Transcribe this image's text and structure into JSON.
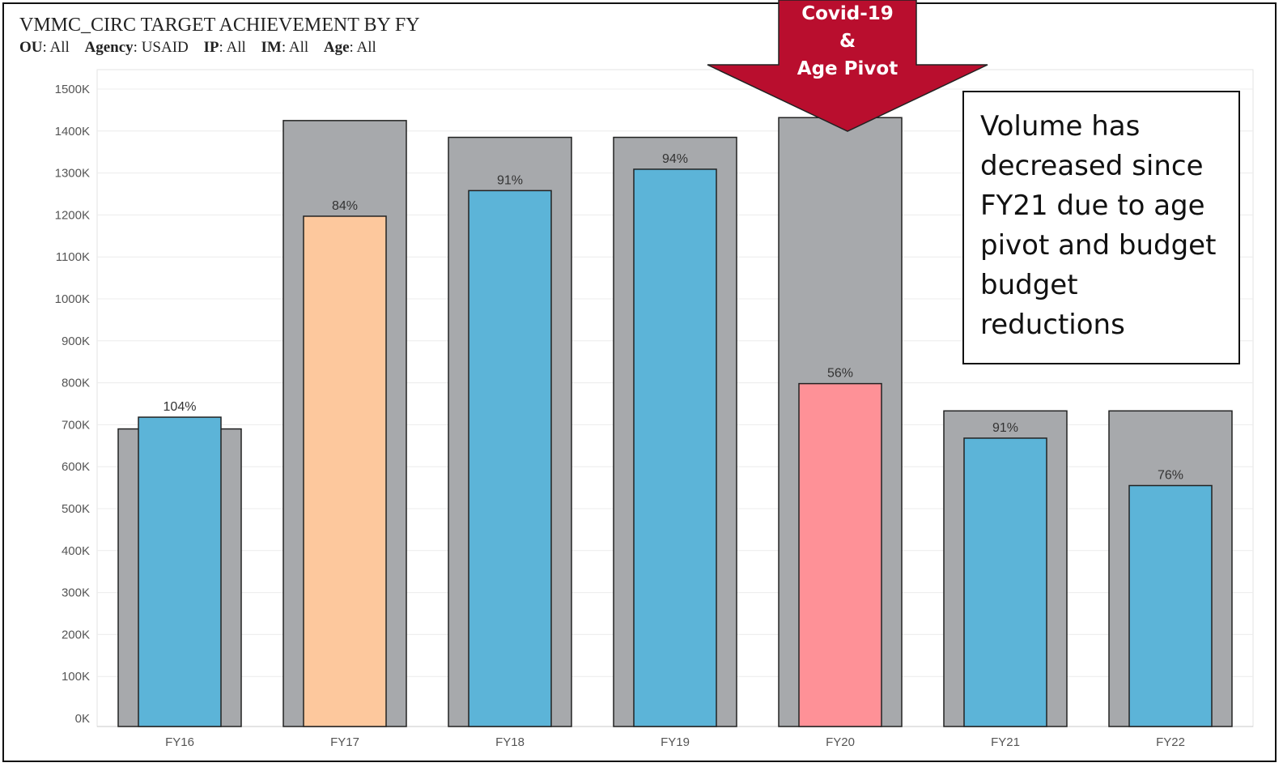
{
  "title": "VMMC_CIRC TARGET ACHIEVEMENT BY FY",
  "filters": [
    {
      "key": "OU",
      "value": "All"
    },
    {
      "key": "Agency",
      "value": "USAID"
    },
    {
      "key": "IP",
      "value": "All"
    },
    {
      "key": "IM",
      "value": "All"
    },
    {
      "key": "Age",
      "value": "All"
    }
  ],
  "callout": {
    "lines": [
      "Covid-19",
      "&",
      "Age Pivot"
    ],
    "color": "#b90e2e"
  },
  "annotation": {
    "text": "Volume has decreased since FY21 due to age pivot and budget budget reductions"
  },
  "colors": {
    "target": "#a7a9ac",
    "blue": "#5cb4d8",
    "orange": "#fdc89d",
    "red": "#fe9197"
  },
  "chart_data": {
    "type": "bar",
    "categories": [
      "FY16",
      "FY17",
      "FY18",
      "FY19",
      "FY20",
      "FY21",
      "FY22"
    ],
    "series": [
      {
        "role": "target",
        "values": [
          690000,
          1425000,
          1385000,
          1385000,
          1432000,
          733000,
          733000
        ]
      },
      {
        "role": "result",
        "values": [
          718000,
          1197000,
          1258000,
          1309000,
          798000,
          668000,
          555000
        ]
      }
    ],
    "data_labels": [
      "104%",
      "84%",
      "91%",
      "94%",
      "56%",
      "91%",
      "76%"
    ],
    "result_colors": [
      "blue",
      "orange",
      "blue",
      "blue",
      "red",
      "blue",
      "blue"
    ],
    "y_ticks": [
      "0K",
      "100K",
      "200K",
      "300K",
      "400K",
      "500K",
      "600K",
      "700K",
      "800K",
      "900K",
      "1000K",
      "1100K",
      "1200K",
      "1300K",
      "1400K",
      "1500K"
    ],
    "ylim": [
      0,
      1500000
    ],
    "grid": true
  }
}
